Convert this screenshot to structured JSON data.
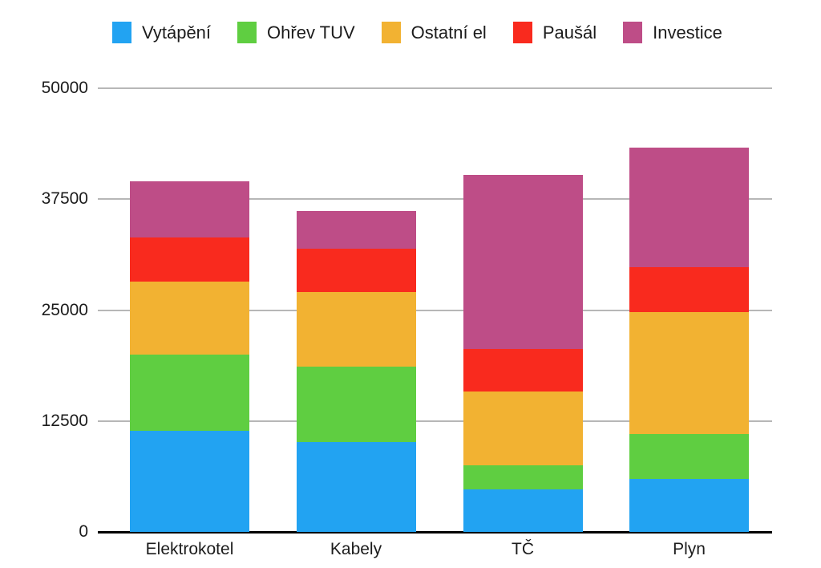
{
  "chart_data": {
    "type": "bar",
    "stacked": true,
    "title": "",
    "xlabel": "",
    "ylabel": "",
    "categories": [
      "Elektrokotel",
      "Kabely",
      "TČ",
      "Plyn"
    ],
    "series": [
      {
        "name": "Vytápění",
        "color": "#22A3F2",
        "values": [
          11400,
          10100,
          4800,
          6000
        ]
      },
      {
        "name": "Ohřev TUV",
        "color": "#5FCE41",
        "values": [
          8600,
          8500,
          2700,
          5000
        ]
      },
      {
        "name": "Ostatní el",
        "color": "#F2B232",
        "values": [
          8200,
          8400,
          8300,
          13800
        ]
      },
      {
        "name": "Paušál",
        "color": "#F92A1E",
        "values": [
          5000,
          4900,
          4800,
          5000
        ]
      },
      {
        "name": "Investice",
        "color": "#BE4D87",
        "values": [
          6300,
          4300,
          19600,
          13500
        ]
      }
    ],
    "totals": [
      39500,
      36200,
      40200,
      43300
    ],
    "ylim": [
      0,
      50000
    ],
    "y_ticks": [
      0,
      12500,
      25000,
      37500,
      50000
    ],
    "grid": true,
    "legend_position": "top",
    "colors": {
      "gridline": "#b7b7b7",
      "axis": "#000000",
      "background": "#ffffff",
      "text": "#1c1c1c"
    }
  }
}
